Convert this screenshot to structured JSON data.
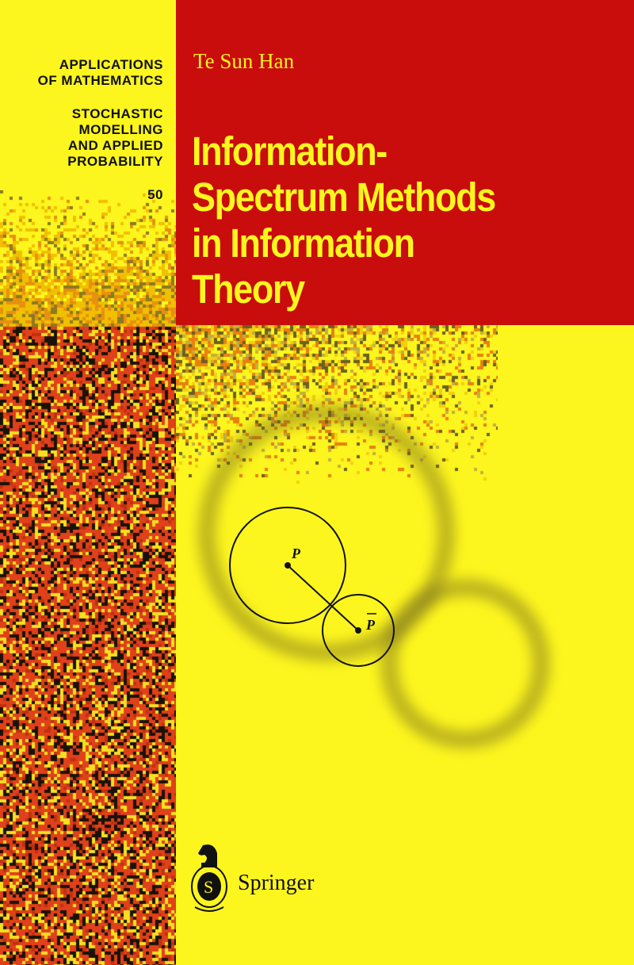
{
  "series": {
    "line1": [
      "APPLICATIONS",
      "OF MATHEMATICS"
    ],
    "line2": [
      "STOCHASTIC",
      "MODELLING",
      "AND APPLIED",
      "PROBABILITY"
    ],
    "volume": "50"
  },
  "author": "Te Sun Han",
  "title": [
    "Information-",
    "Spectrum Methods",
    "in Information",
    "Theory"
  ],
  "diagram": {
    "point_p": "P",
    "point_pbar": "P"
  },
  "publisher": {
    "name": "Springer",
    "logo": "springer-knight-logo"
  },
  "colors": {
    "background": "#fdf61e",
    "panel": "#c90c0c",
    "noise_red": "#e0401a",
    "noise_dark": "#1a1208"
  }
}
